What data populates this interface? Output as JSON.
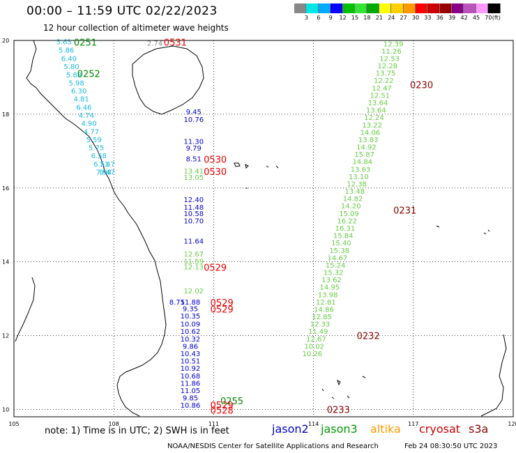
{
  "title": "00:00 – 11:59 UTC 02/22/2023",
  "subtitle": "12 hour collection of altimeter wave heights",
  "colorbar": {
    "colors": [
      "#888888",
      "#00e5e5",
      "#00aaff",
      "#0000ff",
      "#00c000",
      "#33e633",
      "#00aa00",
      "#ffff00",
      "#ffd000",
      "#ff9900",
      "#ff0000",
      "#cc0000",
      "#990000",
      "#880088",
      "#bb55bb",
      "#ff99ff",
      "#000000"
    ],
    "labels": [
      "3",
      "6",
      "9",
      "12",
      "15",
      "18",
      "21",
      "24",
      "27",
      "30",
      "33",
      "36",
      "39",
      "42",
      "45",
      "70",
      "(ft)"
    ]
  },
  "axes": {
    "lon_ticks": [
      "105",
      "108",
      "111",
      "114",
      "117",
      "120"
    ],
    "lat_ticks": [
      "20",
      "18",
      "16",
      "14",
      "12",
      "10"
    ]
  },
  "colors": {
    "cyan": "#1ab8dd",
    "blue": "#0000cc",
    "lightgreen": "#66cc44",
    "green": "#008800",
    "red": "#ee0000",
    "darkred": "#880000",
    "gray": "#888888"
  },
  "tracks": [
    {
      "name": "cyan-track",
      "color": "cyan",
      "lon": 106.5,
      "lat": [
        19.95,
        19.73,
        19.5,
        19.28,
        19.06,
        18.84,
        18.62,
        18.4,
        18.18,
        17.96,
        17.74,
        17.52,
        17.3,
        17.08,
        16.86,
        16.64,
        16.42
      ],
      "values": [
        "5.63",
        "5.86",
        "6.40",
        "5.80",
        "5.88",
        "5.98",
        "6.30",
        "4.81",
        "6.46",
        "4.74",
        "4.90",
        "4.77",
        "5.59",
        "5.75",
        "6.58",
        "6.51",
        "7.98"
      ]
    },
    {
      "name": "cyan-track-tail",
      "color": "cyan",
      "lon": 107.8,
      "lat": [
        16.64,
        16.42
      ],
      "values": [
        "7.47",
        "8.47"
      ]
    },
    {
      "name": "blue-track-north",
      "color": "blue",
      "lon": 110.4,
      "lat": [
        18.05,
        17.85,
        17.25,
        17.07,
        16.78
      ],
      "values": [
        "9.45",
        "10.76",
        "11.30",
        "9.79",
        "8.51"
      ]
    },
    {
      "name": "lightgreen-track-west",
      "color": "lightgreen",
      "lon": 110.4,
      "lat": [
        16.45,
        16.28
      ],
      "values": [
        "13.41",
        "13.05"
      ]
    },
    {
      "name": "mixed-track-mid",
      "color": "blue",
      "lon": 110.4,
      "lat": [
        15.67,
        15.47,
        15.3,
        15.1,
        14.55
      ],
      "values": [
        "12.40",
        "11.48",
        "10.58",
        "10.70",
        "11.64"
      ]
    },
    {
      "name": "lightgreen-track-mid",
      "color": "lightgreen",
      "lon": 110.4,
      "lat": [
        14.2,
        14.0,
        13.85,
        13.2
      ],
      "values": [
        "12.67",
        "11.59",
        "12.13",
        "12.02"
      ]
    },
    {
      "name": "blue-track-south",
      "color": "blue",
      "lon": 110.3,
      "lat": [
        12.9,
        12.72,
        12.52,
        12.3,
        12.1,
        11.9,
        11.7,
        11.5,
        11.3,
        11.1,
        10.9,
        10.7,
        10.5,
        10.3,
        10.1
      ],
      "values": [
        "11.88",
        "9.35",
        "10.35",
        "10.09",
        "10.62",
        "10.32",
        "9.86",
        "10.43",
        "10.51",
        "10.92",
        "10.68",
        "11.86",
        "11.05",
        "9.85",
        "10.86"
      ]
    },
    {
      "name": "blue-track-south-b",
      "color": "blue",
      "lon": 109.9,
      "lat": [
        12.9
      ],
      "values": [
        "8.75"
      ]
    },
    {
      "name": "lightgreen-track-east",
      "color": "lightgreen",
      "lon": 116.4,
      "lat": [
        19.9,
        19.7,
        19.5,
        19.3,
        19.1,
        18.9,
        18.7,
        18.5,
        18.3,
        18.1,
        17.9,
        17.7,
        17.5,
        17.3,
        17.1,
        16.9,
        16.7,
        16.5,
        16.3,
        16.1,
        15.9,
        15.7,
        15.5,
        15.3,
        15.1,
        14.9,
        14.7,
        14.5,
        14.3,
        14.1,
        13.9,
        13.7,
        13.5,
        13.3,
        13.1,
        12.9,
        12.7,
        12.5,
        12.3,
        12.1,
        11.9,
        11.7,
        11.5,
        11.3,
        11.1,
        10.9,
        10.7,
        10.5,
        10.3,
        10.1
      ],
      "values": [
        "12.39",
        "11.26",
        "12.53",
        "12.28",
        "13.75",
        "12.22",
        "12.47",
        "12.51",
        "13.64",
        "13.64",
        "12.24",
        "13.22",
        "14.06",
        "13.83",
        "14.92",
        "15.87",
        "14.84",
        "13.63",
        "13.10",
        "12.38",
        "13.48",
        "14.82",
        "14.20",
        "15.09",
        "16.22",
        "16.31",
        "15.84",
        "15.40",
        "15.38",
        "14.67",
        "15.24",
        "15.32",
        "13.62",
        "14.95",
        "13.98",
        "12.81",
        "14.86",
        "12.85",
        "12.33",
        "11.49",
        "12.67",
        "10.02",
        "10.26",
        "",
        "",
        "",
        "",
        "",
        "",
        ""
      ]
    }
  ],
  "pass_times": [
    {
      "label": "0251",
      "color": "green",
      "lon": 106.8,
      "lat": 19.95
    },
    {
      "label": "0531",
      "color": "red",
      "lon": 109.5,
      "lat": 19.95
    },
    {
      "label": "2.74",
      "color": "gray",
      "lon": 109.0,
      "lat": 19.95
    },
    {
      "label": "0252",
      "color": "green",
      "lon": 106.9,
      "lat": 19.1
    },
    {
      "label": "0530",
      "color": "red",
      "lon": 110.7,
      "lat": 16.78
    },
    {
      "label": "0530",
      "color": "red",
      "lon": 110.7,
      "lat": 16.45
    },
    {
      "label": "0529",
      "color": "red",
      "lon": 110.7,
      "lat": 13.85
    },
    {
      "label": "0529",
      "color": "red",
      "lon": 110.9,
      "lat": 12.9
    },
    {
      "label": "0529",
      "color": "red",
      "lon": 110.9,
      "lat": 12.72
    },
    {
      "label": "0255",
      "color": "green",
      "lon": 111.2,
      "lat": 10.23
    },
    {
      "label": "0529",
      "color": "red",
      "lon": 110.9,
      "lat": 10.12
    },
    {
      "label": "0528",
      "color": "red",
      "lon": 110.9,
      "lat": 9.98
    },
    {
      "label": "0230",
      "color": "darkred",
      "lon": 116.9,
      "lat": 18.8
    },
    {
      "label": "0231",
      "color": "darkred",
      "lon": 116.4,
      "lat": 15.4
    },
    {
      "label": "0232",
      "color": "darkred",
      "lon": 115.3,
      "lat": 12.0
    },
    {
      "label": "0233",
      "color": "darkred",
      "lon": 114.4,
      "lat": 10.0
    }
  ],
  "footer": {
    "note": "note:  1) Time is in UTC;  2) SWH is in feet",
    "legend": [
      {
        "label": "jason2",
        "color": "#0000cc"
      },
      {
        "label": "jason3",
        "color": "#009900"
      },
      {
        "label": "altika",
        "color": "#ff9900"
      },
      {
        "label": "cryosat",
        "color": "#cc0000"
      },
      {
        "label": "s3a",
        "color": "#880000"
      }
    ],
    "credit": "NOAA/NESDIS Center for Satellite Applications and Research",
    "date": "Feb 24 08:30:50 UTC 2023"
  }
}
